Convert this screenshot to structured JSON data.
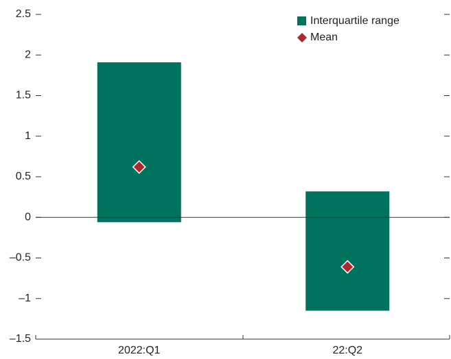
{
  "chart_data": {
    "type": "range",
    "categories": [
      "2022:Q1",
      "22:Q2"
    ],
    "series": [
      {
        "name": "Interquartile range",
        "color": "#00735f",
        "low": [
          -0.06,
          -1.15
        ],
        "high": [
          1.91,
          0.32
        ]
      },
      {
        "name": "Mean",
        "color": "#b0282e",
        "values": [
          0.62,
          -0.61
        ]
      }
    ],
    "ylim": [
      -1.5,
      2.5
    ],
    "yticks": [
      {
        "value": -1.5,
        "label": "–1.5"
      },
      {
        "value": -1,
        "label": "–1"
      },
      {
        "value": -0.5,
        "label": "–0.5"
      },
      0,
      0.5,
      1,
      1.5,
      2,
      2.5
    ]
  }
}
